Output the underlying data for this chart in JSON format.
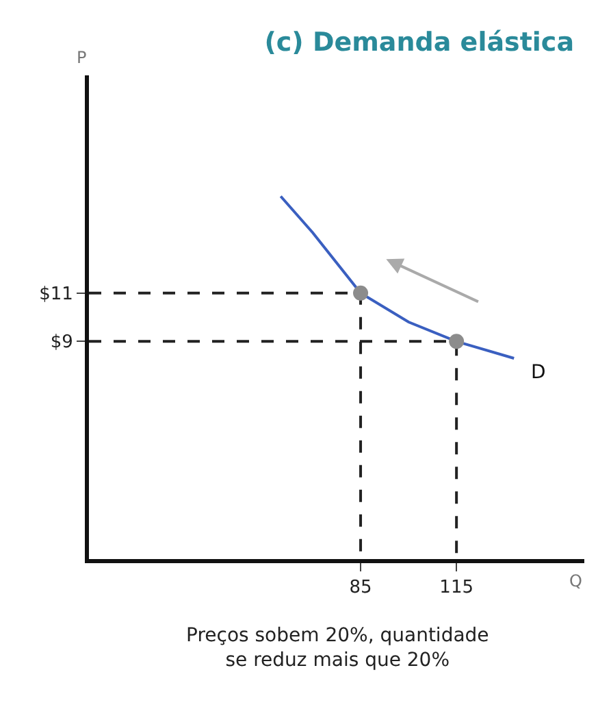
{
  "chart_data": {
    "type": "line",
    "title": "(c) Demanda elástica",
    "xlabel": "Q",
    "ylabel": "P",
    "xlim": [
      0,
      155
    ],
    "ylim": [
      0,
      20
    ],
    "xticks": [
      85,
      115
    ],
    "yticks": [
      {
        "value": 9,
        "label": "$9"
      },
      {
        "value": 11,
        "label": "$11"
      }
    ],
    "series": [
      {
        "x": [
          0,
          85,
          85
        ],
        "values": [
          11,
          11,
          0
        ],
        "color": "#222222",
        "line_style": "dashed",
        "marker": "none"
      },
      {
        "x": [
          0,
          115,
          115
        ],
        "values": [
          9,
          9,
          0
        ],
        "color": "#222222",
        "line_style": "dashed",
        "marker": "none"
      },
      {
        "x": [
          60,
          70,
          85,
          100,
          115,
          133
        ],
        "values": [
          15,
          13.5,
          11,
          9.8,
          9,
          8.3
        ],
        "color": "#3a5fc0",
        "line_style": "solid",
        "marker": "none"
      },
      {
        "type": "scatter",
        "x": [
          85,
          115
        ],
        "values": [
          11,
          9
        ],
        "color": "#8c8c8c",
        "marker": "circle"
      }
    ],
    "annotations": [
      "D",
      "Preços sobem 20%, quantidade\nse reduz mais que 20%"
    ]
  }
}
